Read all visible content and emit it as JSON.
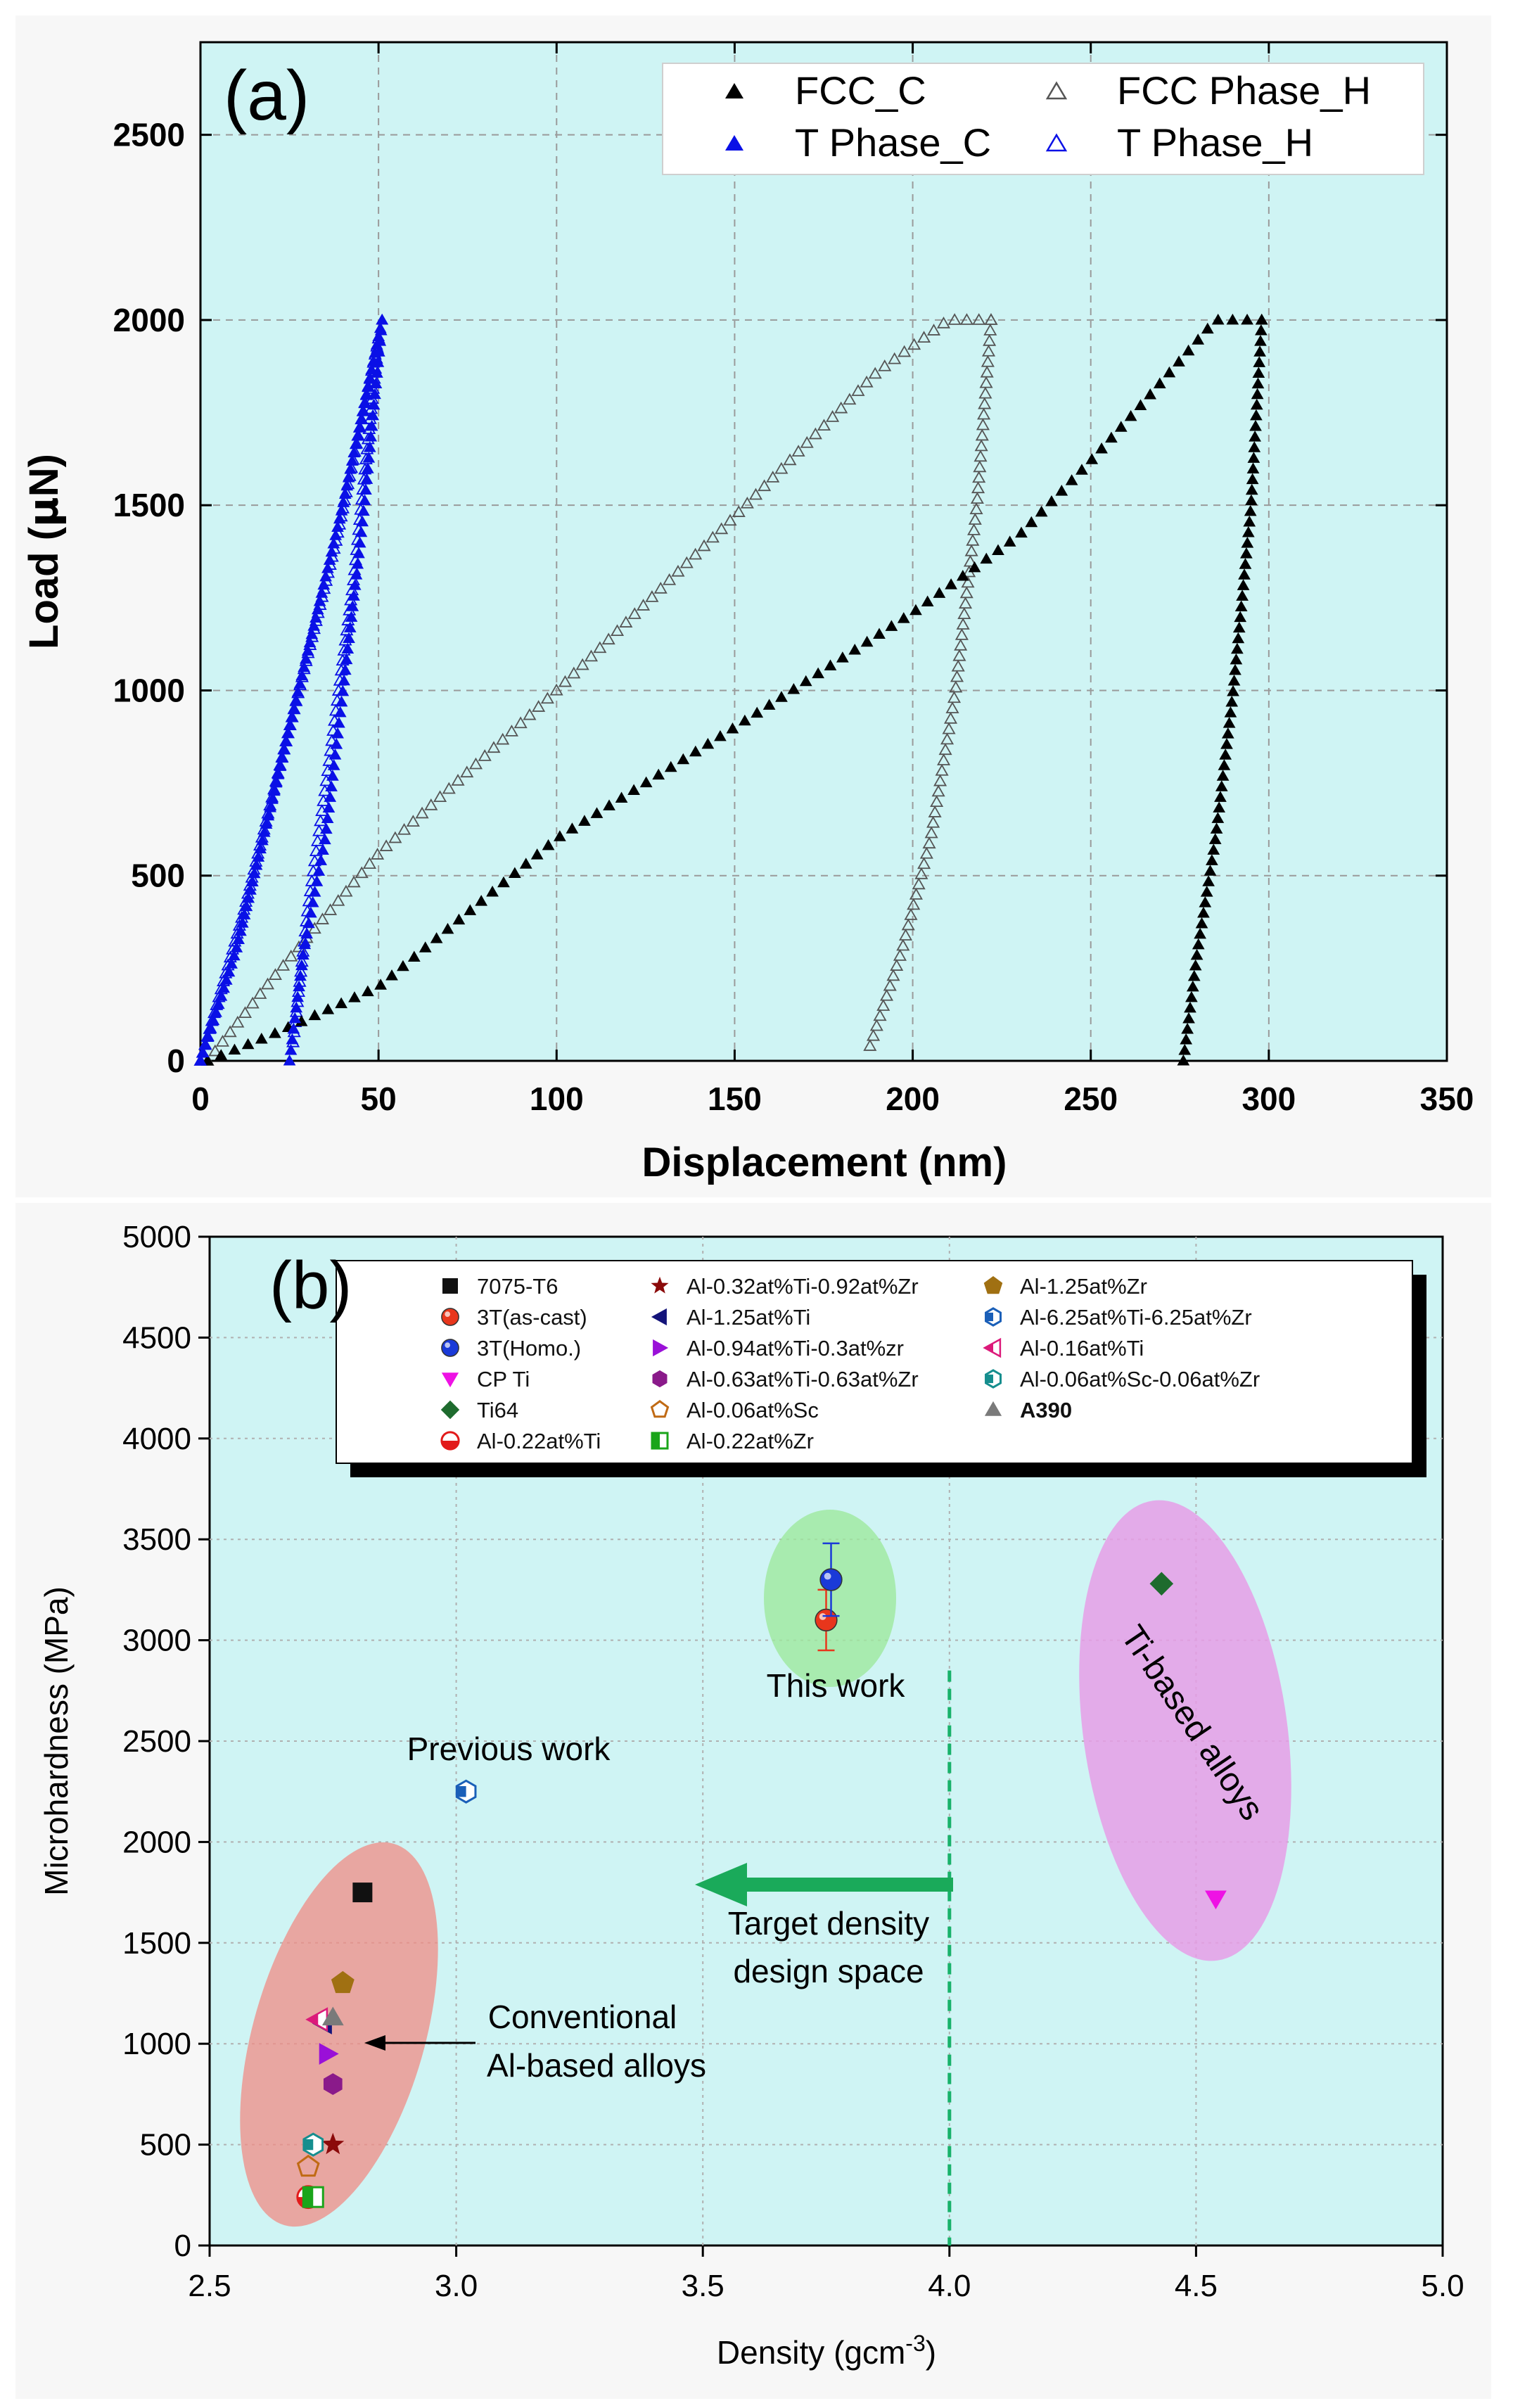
{
  "colors": {
    "plot_bg": "#cff4f4",
    "black": "#000000",
    "blue": "#0a10e6",
    "grey": "#555555",
    "target_line": "#18b26a"
  },
  "chart_data": [
    {
      "type": "line",
      "panel_label": "(a)",
      "xlabel": "Displacement (nm)",
      "ylabel_main": "Load (",
      "ylabel_mu": "µ",
      "ylabel_end": "N)",
      "xlim": [
        0,
        350
      ],
      "ylim": [
        0,
        2750
      ],
      "xticks": [
        0,
        50,
        100,
        150,
        200,
        250,
        300,
        350
      ],
      "yticks": [
        0,
        500,
        1000,
        1500,
        2000,
        2500
      ],
      "legend_position": "top-right",
      "series": [
        {
          "name": "FCC_C",
          "marker": "filled-triangle",
          "color": "#000000",
          "loading": [
            [
              2,
              0
            ],
            [
              20,
              70
            ],
            [
              50,
              200
            ],
            [
              100,
              600
            ],
            [
              150,
              900
            ],
            [
              200,
              1210
            ],
            [
              230,
              1420
            ],
            [
              250,
              1620
            ],
            [
              265,
              1780
            ],
            [
              285,
              2000
            ],
            [
              298,
              2000
            ]
          ],
          "unloading": [
            [
              298,
              2000
            ],
            [
              295,
              1500
            ],
            [
              290,
              1000
            ],
            [
              285,
              600
            ],
            [
              280,
              300
            ],
            [
              276,
              0
            ]
          ]
        },
        {
          "name": "FCC Phase_H",
          "marker": "open-triangle",
          "color": "#555555",
          "loading": [
            [
              2,
              0
            ],
            [
              20,
              220
            ],
            [
              50,
              560
            ],
            [
              100,
              1000
            ],
            [
              150,
              1470
            ],
            [
              190,
              1860
            ],
            [
              210,
              2000
            ],
            [
              222,
              2000
            ]
          ],
          "unloading": [
            [
              222,
              2000
            ],
            [
              218,
              1500
            ],
            [
              212,
              1000
            ],
            [
              205,
              600
            ],
            [
              197,
              300
            ],
            [
              188,
              40
            ]
          ]
        },
        {
          "name": "T Phase_C",
          "marker": "filled-triangle",
          "color": "#0a10e6",
          "loading": [
            [
              0,
              0
            ],
            [
              10,
              300
            ],
            [
              20,
              700
            ],
            [
              30,
              1100
            ],
            [
              40,
              1500
            ],
            [
              51,
              2000
            ]
          ],
          "unloading": [
            [
              51,
              2000
            ],
            [
              46,
              1500
            ],
            [
              40,
              1000
            ],
            [
              35,
              600
            ],
            [
              29,
              300
            ],
            [
              25,
              0
            ]
          ]
        },
        {
          "name": "T Phase_H",
          "marker": "open-triangle",
          "color": "#0a10e6",
          "loading": [
            [
              0,
              0
            ],
            [
              12,
              400
            ],
            [
              25,
              900
            ],
            [
              38,
              1400
            ],
            [
              50,
              1950
            ]
          ],
          "unloading": [
            [
              50,
              1950
            ],
            [
              43,
              1300
            ],
            [
              36,
              800
            ],
            [
              30,
              400
            ],
            [
              26,
              50
            ]
          ]
        }
      ]
    },
    {
      "type": "scatter",
      "panel_label": "(b)",
      "xlabel": "Density (gcm",
      "xlabel_sup": "-3",
      "xlabel_end": ")",
      "ylabel": "Microhardness (MPa)",
      "xlim": [
        2.5,
        5.0
      ],
      "ylim": [
        0,
        5000
      ],
      "xticks": [
        "2.5",
        "3.0",
        "3.5",
        "4.0",
        "4.5",
        "5.0"
      ],
      "yticks": [
        0,
        500,
        1000,
        1500,
        2000,
        2500,
        3000,
        3500,
        4000,
        4500,
        5000
      ],
      "legend_position": "top",
      "target_density": 4.0,
      "points": [
        {
          "label": "7075-T6",
          "x": 2.81,
          "y": 1750,
          "marker": "square",
          "color": "#111111"
        },
        {
          "label": "3T(as-cast)",
          "x": 3.75,
          "y": 3100,
          "marker": "sphere",
          "color": "#e8361c",
          "err": 150
        },
        {
          "label": "3T(Homo.)",
          "x": 3.76,
          "y": 3300,
          "marker": "sphere",
          "color": "#1a3ad8",
          "err": 180
        },
        {
          "label": "CP Ti",
          "x": 4.54,
          "y": 1720,
          "marker": "triangle-down",
          "color": "#ee12e4"
        },
        {
          "label": "Ti64",
          "x": 4.43,
          "y": 3280,
          "marker": "diamond",
          "color": "#1e6b2e"
        },
        {
          "label": "Al-0.22at%Ti",
          "x": 2.7,
          "y": 240,
          "marker": "half-circle",
          "color": "#e21a1a"
        },
        {
          "label": "Al-0.32at%Ti-0.92at%Zr",
          "x": 2.75,
          "y": 500,
          "marker": "star",
          "color": "#8b0a0a"
        },
        {
          "label": "Al-1.25at%Ti",
          "x": 2.73,
          "y": 1100,
          "marker": "triangle-left",
          "color": "#14147a"
        },
        {
          "label": "Al-0.94at%Ti-0.3at%zr",
          "x": 2.74,
          "y": 950,
          "marker": "triangle-right",
          "color": "#9a10d8"
        },
        {
          "label": "Al-0.63at%Ti-0.63at%Zr",
          "x": 2.75,
          "y": 800,
          "marker": "hexagon",
          "color": "#8a1a8a"
        },
        {
          "label": "Al-0.06at%Sc",
          "x": 2.7,
          "y": 390,
          "marker": "pentagon-open",
          "color": "#c06a14"
        },
        {
          "label": "Al-0.22at%Zr",
          "x": 2.71,
          "y": 240,
          "marker": "square-half",
          "color": "#1aa51a"
        },
        {
          "label": "Al-1.25at%Zr",
          "x": 2.77,
          "y": 1300,
          "marker": "pentagon",
          "color": "#a07012"
        },
        {
          "label": "Al-6.25at%Ti-6.25at%Zr",
          "x": 3.02,
          "y": 2250,
          "marker": "hexagon-half",
          "color": "#1a5fb8"
        },
        {
          "label": "Al-0.16at%Ti",
          "x": 2.72,
          "y": 1120,
          "marker": "triangle-left-half",
          "color": "#dc1a7a"
        },
        {
          "label": "Al-0.06at%Sc-0.06at%Zr",
          "x": 2.71,
          "y": 500,
          "marker": "hexagon-half",
          "color": "#168e8e"
        },
        {
          "label": "A390",
          "x": 2.75,
          "y": 1130,
          "marker": "triangle-up",
          "color": "#7a7a7a"
        }
      ],
      "annotations": {
        "this_work": "This work",
        "previous_work": "Previous work",
        "conventional_1": "Conventional",
        "conventional_2": "Al-based alloys",
        "target_1": "Target density",
        "target_2": "design space",
        "ti_based": "Ti-based alloys"
      }
    }
  ]
}
